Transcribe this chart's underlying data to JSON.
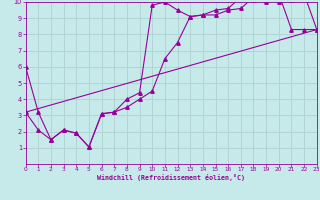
{
  "xlabel": "Windchill (Refroidissement éolien,°C)",
  "bg_color": "#c6eaea",
  "line_color": "#990099",
  "grid_color": "#b0d0d0",
  "xmin": 0,
  "xmax": 23,
  "ymin": 0,
  "ymax": 10,
  "line1_x": [
    0,
    1,
    2,
    3,
    4,
    5,
    6,
    7,
    8,
    9,
    10,
    11,
    12,
    13,
    14,
    15,
    16,
    17,
    18,
    19,
    20,
    21,
    22,
    23
  ],
  "line1_y": [
    6.0,
    3.2,
    1.5,
    2.1,
    1.9,
    1.05,
    3.1,
    3.2,
    4.0,
    4.4,
    9.8,
    10.0,
    9.5,
    9.1,
    9.2,
    9.2,
    9.5,
    9.6,
    10.3,
    10.1,
    10.0,
    10.1,
    10.5,
    8.3
  ],
  "line2_x": [
    0,
    1,
    2,
    3,
    4,
    5,
    6,
    7,
    8,
    9,
    10,
    11,
    12,
    13,
    14,
    15,
    16,
    17,
    18,
    19,
    20,
    21,
    22,
    23
  ],
  "line2_y": [
    3.2,
    2.1,
    1.5,
    2.1,
    1.9,
    1.05,
    3.1,
    3.2,
    3.5,
    4.0,
    4.5,
    6.5,
    7.5,
    9.1,
    9.2,
    9.5,
    9.6,
    10.3,
    10.1,
    10.0,
    10.5,
    8.3,
    8.3,
    8.3
  ],
  "line3_x": [
    0,
    23
  ],
  "line3_y": [
    3.2,
    8.3
  ],
  "yticks": [
    1,
    2,
    3,
    4,
    5,
    6,
    7,
    8,
    9,
    10
  ],
  "xticks": [
    0,
    1,
    2,
    3,
    4,
    5,
    6,
    7,
    8,
    9,
    10,
    11,
    12,
    13,
    14,
    15,
    16,
    17,
    18,
    19,
    20,
    21,
    22,
    23
  ]
}
